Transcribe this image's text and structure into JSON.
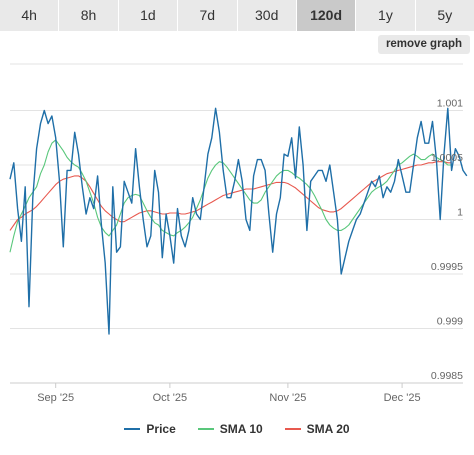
{
  "tabs": [
    {
      "label": "4h",
      "active": false
    },
    {
      "label": "8h",
      "active": false
    },
    {
      "label": "1d",
      "active": false
    },
    {
      "label": "7d",
      "active": false
    },
    {
      "label": "30d",
      "active": false
    },
    {
      "label": "120d",
      "active": true
    },
    {
      "label": "1y",
      "active": false
    },
    {
      "label": "5y",
      "active": false
    }
  ],
  "remove_graph_label": "remove graph",
  "colors": {
    "price": "#1f6fa8",
    "sma10": "#59c77b",
    "sma20": "#e8594f",
    "grid": "#e3e3e3",
    "axis_text": "#666666"
  },
  "chart_data": {
    "type": "line",
    "title": "",
    "xlabel": "",
    "ylabel": "",
    "grid": true,
    "legend_position": "bottom",
    "ylim": [
      0.9985,
      1.0015
    ],
    "yticks": [
      {
        "value": 0.9985,
        "label": "0.9985"
      },
      {
        "value": 0.999,
        "label": "0.999"
      },
      {
        "value": 0.9995,
        "label": "0.9995"
      },
      {
        "value": 1.0,
        "label": "1"
      },
      {
        "value": 1.0005,
        "label": "1.0005"
      },
      {
        "value": 1.001,
        "label": "1.001"
      }
    ],
    "xlim": [
      "2025-08-20",
      "2025-12-17"
    ],
    "xticks": [
      {
        "date": "2025-09-01",
        "label": "Sep '25"
      },
      {
        "date": "2025-10-01",
        "label": "Oct '25"
      },
      {
        "date": "2025-11-01",
        "label": "Nov '25"
      },
      {
        "date": "2025-12-01",
        "label": "Dec '25"
      }
    ],
    "x_start": "2025-08-20",
    "x_step_days": 1,
    "series": [
      {
        "name": "Price",
        "values": [
          1.00037,
          1.00052,
          1.0001,
          0.9998,
          1.0003,
          0.9992,
          1.0002,
          1.00065,
          1.00088,
          1.001,
          1.00088,
          1.00095,
          1.00075,
          1.00035,
          0.99975,
          1.00045,
          1.00045,
          1.0008,
          1.0006,
          1.0003,
          1.00005,
          1.0002,
          1.0001,
          1.0004,
          0.99995,
          0.9996,
          0.99895,
          1.0003,
          0.9997,
          0.99975,
          1.00035,
          1.00025,
          1.00015,
          1.00065,
          1.0003,
          1.0,
          0.99975,
          0.99985,
          1.00045,
          1.00025,
          0.99965,
          1.00005,
          0.99985,
          0.9996,
          1.0001,
          0.99985,
          0.99975,
          0.9999,
          1.0002,
          1.00005,
          1.0,
          1.0003,
          1.0006,
          1.00075,
          1.00102,
          1.0008,
          1.00045,
          1.0002,
          1.0002,
          1.00035,
          1.00055,
          1.00035,
          1.0,
          0.9999,
          1.0004,
          1.00055,
          1.00055,
          1.00045,
          1.00005,
          0.9997,
          1.00005,
          1.0002,
          1.0006,
          1.00058,
          1.00075,
          1.00038,
          1.00085,
          1.0005,
          0.9999,
          1.00035,
          1.0004,
          1.00045,
          1.00045,
          1.00035,
          1.0005,
          1.00025,
          1.0,
          0.9995,
          0.99965,
          0.9998,
          0.9999,
          1.0,
          1.00005,
          1.00015,
          1.00025,
          1.00035,
          1.0003,
          1.0004,
          1.0002,
          1.0003,
          1.00025,
          1.00035,
          1.00055,
          1.0004,
          1.00025,
          1.00025,
          1.0005,
          1.00075,
          1.0009,
          1.0007,
          1.0007,
          1.0009,
          1.00055,
          1.0,
          1.0006,
          1.00102,
          1.00045,
          1.00065,
          1.00058,
          1.00045,
          1.0004
        ]
      },
      {
        "name": "SMA 10",
        "values": [
          0.9997,
          0.99985,
          0.99998,
          1.00005,
          1.00012,
          1.0002,
          1.00025,
          1.0003,
          1.00042,
          1.0005,
          1.00062,
          1.0007,
          1.00073,
          1.00068,
          1.00063,
          1.00057,
          1.00053,
          1.0005,
          1.00048,
          1.00042,
          1.00035,
          1.00025,
          1.00015,
          1.00002,
          0.99993,
          0.99988,
          0.99985,
          0.9999,
          0.99995,
          1.00005,
          1.00015,
          1.0002,
          1.00022,
          1.00023,
          1.00022,
          1.00015,
          1.00008,
          1.00002,
          0.99997,
          0.99995,
          0.9999,
          0.99988,
          0.99986,
          0.99985,
          0.99988,
          0.9999,
          0.99993,
          0.99997,
          1.00002,
          1.0001,
          1.00018,
          1.00028,
          1.00038,
          1.00045,
          1.0005,
          1.00053,
          1.00052,
          1.00048,
          1.00043,
          1.00038,
          1.00033,
          1.00028,
          1.00023,
          1.00018,
          1.00015,
          1.00015,
          1.00018,
          1.00025,
          1.0003,
          1.00035,
          1.0004,
          1.00043,
          1.00045,
          1.00045,
          1.00043,
          1.0004,
          1.00038,
          1.00035,
          1.00032,
          1.00028,
          1.00022,
          1.00015,
          1.00008,
          1.0,
          0.99995,
          0.99992,
          0.9999,
          0.9999,
          0.99992,
          0.99995,
          1.0,
          1.00005,
          1.0001,
          1.00015,
          1.0002,
          1.00025,
          1.00028,
          1.0003,
          1.00032,
          1.00035,
          1.0004,
          1.00045,
          1.0005,
          1.00052,
          1.00055,
          1.00058,
          1.0006,
          1.00058,
          1.00055,
          1.00055,
          1.00058,
          1.0006,
          1.00057,
          1.00055,
          1.00053,
          1.0005,
          1.0005
        ]
      },
      {
        "name": "SMA 20",
        "values": [
          0.9999,
          0.99995,
          1.0,
          1.00002,
          1.00005,
          1.00007,
          1.00009,
          1.00012,
          1.00016,
          1.0002,
          1.00024,
          1.00028,
          1.00032,
          1.00035,
          1.00037,
          1.00038,
          1.00039,
          1.0004,
          1.0004,
          1.00038,
          1.00035,
          1.0003,
          1.00024,
          1.00018,
          1.00012,
          1.00008,
          1.00005,
          1.00002,
          1.0,
          0.99998,
          0.99998,
          1.0,
          1.00002,
          1.00004,
          1.00006,
          1.00007,
          1.00008,
          1.00008,
          1.00007,
          1.00006,
          1.00005,
          1.00005,
          1.00006,
          1.00006,
          1.00006,
          1.00005,
          1.00005,
          1.00006,
          1.00007,
          1.00008,
          1.0001,
          1.00012,
          1.00014,
          1.00016,
          1.00018,
          1.0002,
          1.00022,
          1.00023,
          1.00024,
          1.00025,
          1.00026,
          1.00027,
          1.00028,
          1.00028,
          1.00028,
          1.00029,
          1.0003,
          1.00031,
          1.00032,
          1.00033,
          1.00034,
          1.00034,
          1.00034,
          1.00033,
          1.00031,
          1.00029,
          1.00026,
          1.00023,
          1.0002,
          1.00017,
          1.00014,
          1.00011,
          1.00009,
          1.00008,
          1.00007,
          1.00007,
          1.00008,
          1.0001,
          1.00013,
          1.00016,
          1.00019,
          1.00022,
          1.00025,
          1.00028,
          1.00031,
          1.00034,
          1.00036,
          1.00038,
          1.0004,
          1.00042,
          1.00043,
          1.00044,
          1.00045,
          1.00046,
          1.00047,
          1.00048,
          1.00049,
          1.0005,
          1.0005,
          1.00051,
          1.00052,
          1.00052,
          1.00053,
          1.00053,
          1.00053,
          1.00052,
          1.00052
        ]
      }
    ]
  }
}
